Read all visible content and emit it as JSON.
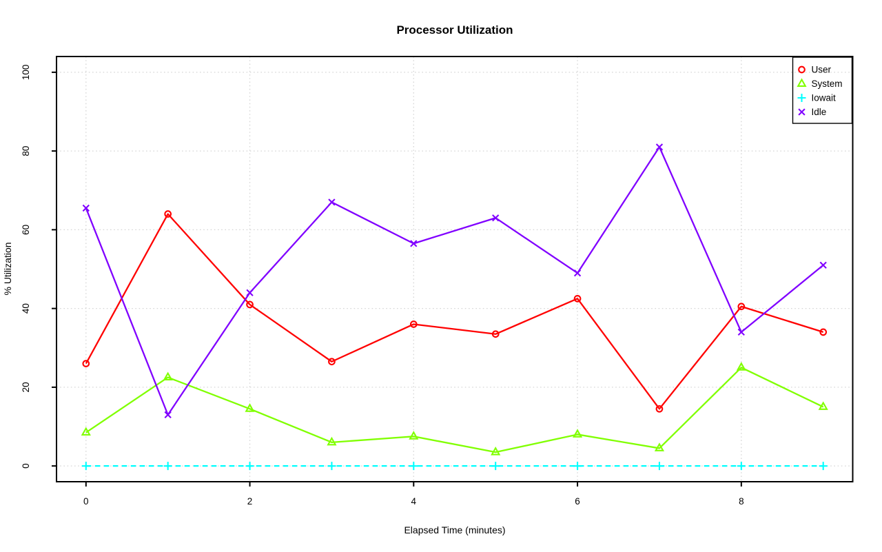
{
  "chart_data": {
    "type": "line",
    "title": "Processor Utilization",
    "xlabel": "Elapsed Time (minutes)",
    "ylabel": "% Utilization",
    "x": [
      0,
      1,
      2,
      3,
      4,
      5,
      6,
      7,
      8,
      9
    ],
    "series": [
      {
        "name": "User",
        "color": "#FF0000",
        "marker": "circle",
        "line": "solid",
        "values": [
          26,
          64,
          41,
          26.5,
          36,
          33.5,
          42.5,
          14.5,
          40.5,
          34
        ]
      },
      {
        "name": "System",
        "color": "#80FF00",
        "marker": "triangle",
        "line": "solid",
        "values": [
          8.5,
          22.5,
          14.5,
          6,
          7.5,
          3.5,
          8,
          4.5,
          25,
          15
        ]
      },
      {
        "name": "Iowait",
        "color": "#00FFFF",
        "marker": "plus",
        "line": "dashed",
        "values": [
          0,
          0,
          0,
          0,
          0,
          0,
          0,
          0,
          0,
          0
        ]
      },
      {
        "name": "Idle",
        "color": "#8000FF",
        "marker": "x",
        "line": "solid",
        "values": [
          65.5,
          13,
          44,
          67,
          56.5,
          63,
          49,
          81,
          34,
          51
        ]
      }
    ],
    "xticks": [
      0,
      2,
      4,
      6,
      8
    ],
    "yticks": [
      0,
      20,
      40,
      60,
      80,
      100
    ],
    "xlim": [
      -0.36,
      9.36
    ],
    "ylim": [
      -4,
      104
    ],
    "grid": true,
    "grid_color": "#D5D5D5",
    "axis_color": "#000000",
    "background": "#FFFFFF",
    "legend": {
      "position": "topright",
      "entries": [
        "User",
        "System",
        "Iowait",
        "Idle"
      ]
    }
  }
}
